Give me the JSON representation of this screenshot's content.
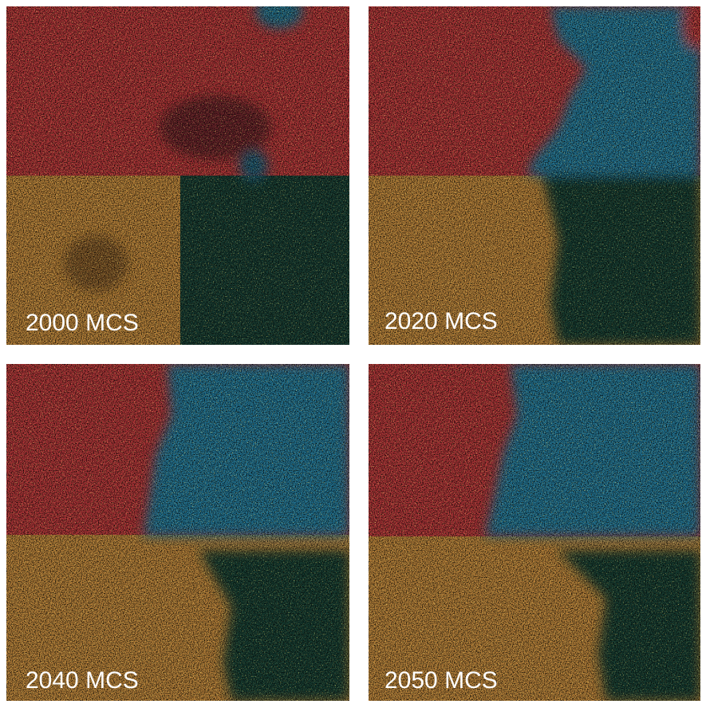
{
  "panels": [
    {
      "label": "2000 MCS"
    },
    {
      "label": "2020 MCS"
    },
    {
      "label": "2040 MCS"
    },
    {
      "label": "2050 MCS"
    }
  ]
}
